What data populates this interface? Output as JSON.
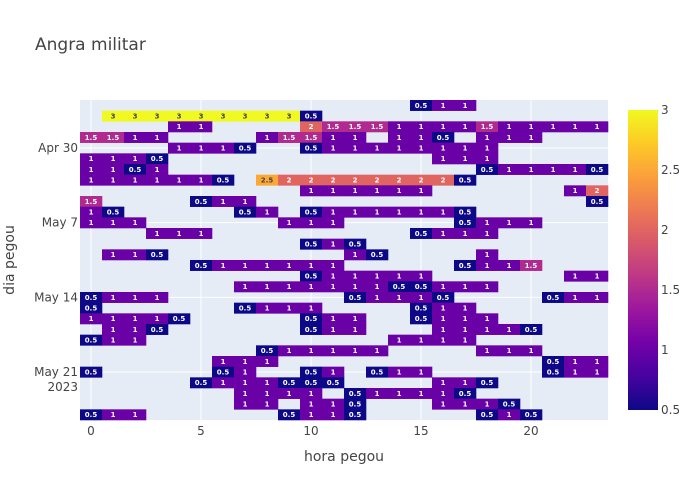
{
  "chart_data": {
    "type": "heatmap",
    "title": "Angra militar",
    "xlabel": "hora pegou",
    "ylabel": "dia pegou",
    "xlim": [
      -0.5,
      23.5
    ],
    "x_ticks": [
      0,
      5,
      10,
      15,
      20
    ],
    "x_tick_labels": [
      "0",
      "5",
      "10",
      "15",
      "20"
    ],
    "y_dates": [
      "2023-04-26",
      "2023-04-27",
      "2023-04-28",
      "2023-04-29",
      "2023-04-30",
      "2023-05-01",
      "2023-05-02",
      "2023-05-03",
      "2023-05-04",
      "2023-05-05",
      "2023-05-06",
      "2023-05-07",
      "2023-05-08",
      "2023-05-09",
      "2023-05-10",
      "2023-05-11",
      "2023-05-12",
      "2023-05-13",
      "2023-05-14",
      "2023-05-15",
      "2023-05-16",
      "2023-05-17",
      "2023-05-18",
      "2023-05-19",
      "2023-05-20",
      "2023-05-21",
      "2023-05-22",
      "2023-05-23",
      "2023-05-24",
      "2023-05-25"
    ],
    "y_ticks": [
      {
        "date": "2023-04-30",
        "label": "Apr 30"
      },
      {
        "date": "2023-05-07",
        "label": "May 7"
      },
      {
        "date": "2023-05-14",
        "label": "May 14"
      },
      {
        "date": "2023-05-21",
        "label": "May 21"
      }
    ],
    "y_year_label": "2023",
    "colorbar": {
      "min": 0.5,
      "max": 3,
      "ticks": [
        0.5,
        1,
        1.5,
        2,
        2.5,
        3
      ],
      "colorscale": [
        "#0d0887",
        "#46039f",
        "#7201a8",
        "#9c179e",
        "#bd3786",
        "#d8576b",
        "#ed7953",
        "#fb9f3a",
        "#fdca26",
        "#f0f921"
      ]
    },
    "grid": true,
    "z": [
      [
        null,
        null,
        null,
        null,
        null,
        null,
        null,
        null,
        null,
        null,
        null,
        null,
        null,
        null,
        null,
        0.5,
        1,
        1,
        null,
        null,
        null,
        null,
        null,
        null
      ],
      [
        null,
        3,
        3,
        3,
        3,
        3,
        3,
        3,
        3,
        3,
        0.5,
        null,
        null,
        null,
        null,
        null,
        null,
        null,
        null,
        null,
        null,
        null,
        null,
        null
      ],
      [
        null,
        null,
        null,
        null,
        1,
        1,
        null,
        null,
        null,
        null,
        2,
        1.5,
        1.5,
        1.5,
        1,
        1,
        1,
        1,
        1.5,
        1,
        1,
        1,
        1,
        1
      ],
      [
        1.5,
        1.5,
        1,
        1,
        null,
        null,
        null,
        null,
        1,
        1.5,
        1.5,
        1,
        1,
        null,
        1,
        1,
        0.5,
        null,
        1,
        1,
        1,
        null,
        null,
        null
      ],
      [
        null,
        null,
        null,
        null,
        1,
        1,
        1,
        0.5,
        null,
        null,
        0.5,
        1,
        1,
        1,
        1,
        1,
        1,
        1,
        1,
        null,
        null,
        null,
        null,
        null
      ],
      [
        1,
        1,
        1,
        0.5,
        null,
        null,
        null,
        null,
        null,
        null,
        null,
        null,
        null,
        null,
        null,
        null,
        1,
        1,
        1,
        null,
        null,
        null,
        null,
        null
      ],
      [
        1,
        1,
        0.5,
        1,
        null,
        null,
        null,
        null,
        null,
        null,
        null,
        null,
        null,
        null,
        null,
        null,
        null,
        null,
        0.5,
        1,
        1,
        1,
        1,
        0.5
      ],
      [
        1,
        1,
        1,
        1,
        1,
        1,
        0.5,
        null,
        2.5,
        2,
        2,
        2,
        2,
        2,
        2,
        2,
        2,
        0.5,
        null,
        null,
        null,
        null,
        null,
        null
      ],
      [
        null,
        null,
        null,
        null,
        null,
        null,
        null,
        null,
        null,
        null,
        1,
        1,
        1,
        1,
        1,
        1,
        null,
        null,
        null,
        null,
        null,
        null,
        1,
        2
      ],
      [
        1.5,
        null,
        null,
        null,
        null,
        0.5,
        1,
        1,
        null,
        null,
        null,
        null,
        null,
        null,
        null,
        null,
        null,
        null,
        null,
        null,
        null,
        null,
        null,
        0.5
      ],
      [
        1,
        0.5,
        null,
        null,
        null,
        null,
        null,
        0.5,
        1,
        null,
        0.5,
        1,
        1,
        1,
        1,
        1,
        1,
        0.5,
        null,
        null,
        null,
        null,
        null,
        null
      ],
      [
        1,
        1,
        1,
        null,
        null,
        null,
        null,
        null,
        null,
        1,
        1,
        1,
        null,
        null,
        null,
        null,
        null,
        0.5,
        1,
        1,
        1,
        null,
        null,
        null
      ],
      [
        null,
        null,
        null,
        1,
        1,
        1,
        null,
        null,
        null,
        null,
        null,
        null,
        null,
        null,
        null,
        0.5,
        1,
        1,
        1,
        null,
        null,
        null,
        null,
        null
      ],
      [
        null,
        null,
        null,
        null,
        null,
        null,
        null,
        null,
        null,
        null,
        0.5,
        1,
        0.5,
        null,
        null,
        null,
        null,
        null,
        null,
        null,
        null,
        null,
        null,
        null
      ],
      [
        null,
        1,
        1,
        0.5,
        null,
        null,
        null,
        null,
        null,
        null,
        null,
        null,
        1,
        0.5,
        null,
        null,
        null,
        null,
        1,
        null,
        null,
        null,
        null,
        null
      ],
      [
        null,
        null,
        null,
        null,
        null,
        0.5,
        1,
        1,
        1,
        1,
        1,
        1,
        null,
        null,
        null,
        null,
        null,
        0.5,
        1,
        1,
        1.5,
        null,
        null,
        null
      ],
      [
        null,
        null,
        null,
        null,
        null,
        null,
        null,
        null,
        null,
        null,
        0.5,
        1,
        1,
        1,
        1,
        1,
        null,
        null,
        null,
        null,
        null,
        null,
        1,
        1
      ],
      [
        null,
        null,
        null,
        null,
        null,
        null,
        null,
        1,
        1,
        1,
        1,
        1,
        1,
        1,
        0.5,
        0.5,
        1,
        1,
        1,
        null,
        null,
        null,
        null,
        null
      ],
      [
        0.5,
        1,
        1,
        1,
        null,
        null,
        null,
        null,
        null,
        null,
        null,
        null,
        0.5,
        1,
        1,
        1,
        0.5,
        null,
        null,
        null,
        null,
        0.5,
        1,
        1
      ],
      [
        0.5,
        null,
        null,
        null,
        null,
        null,
        null,
        0.5,
        1,
        1,
        1,
        null,
        null,
        null,
        null,
        0.5,
        1,
        1,
        null,
        null,
        null,
        null,
        null,
        null
      ],
      [
        1,
        1,
        1,
        1,
        0.5,
        null,
        null,
        null,
        null,
        null,
        0.5,
        1,
        1,
        null,
        null,
        0.5,
        1,
        1,
        1,
        null,
        null,
        null,
        null,
        null
      ],
      [
        null,
        1,
        1,
        0.5,
        null,
        null,
        null,
        null,
        null,
        null,
        0.5,
        1,
        1,
        null,
        null,
        null,
        1,
        1,
        1,
        1,
        0.5,
        null,
        null,
        null
      ],
      [
        0.5,
        1,
        1,
        null,
        null,
        null,
        null,
        null,
        null,
        null,
        null,
        null,
        null,
        null,
        1,
        1,
        1,
        1,
        null,
        null,
        null,
        null,
        null,
        null
      ],
      [
        null,
        null,
        null,
        null,
        null,
        null,
        null,
        null,
        0.5,
        1,
        1,
        1,
        1,
        1,
        null,
        null,
        null,
        null,
        1,
        1,
        1,
        null,
        null,
        null
      ],
      [
        null,
        null,
        null,
        null,
        null,
        null,
        1,
        1,
        1,
        null,
        null,
        null,
        null,
        null,
        null,
        null,
        null,
        null,
        null,
        null,
        null,
        0.5,
        1,
        1
      ],
      [
        0.5,
        null,
        null,
        null,
        null,
        null,
        0.5,
        1,
        null,
        null,
        0.5,
        1,
        null,
        0.5,
        1,
        1,
        null,
        null,
        null,
        null,
        null,
        0.5,
        1,
        1
      ],
      [
        null,
        null,
        null,
        null,
        null,
        0.5,
        1,
        1,
        1,
        0.5,
        0.5,
        0.5,
        null,
        null,
        null,
        null,
        1,
        1,
        0.5,
        null,
        null,
        null,
        null,
        null
      ],
      [
        null,
        null,
        null,
        null,
        null,
        null,
        null,
        1,
        1,
        1,
        1,
        null,
        0.5,
        1,
        1,
        1,
        1,
        0.5,
        null,
        null,
        null,
        null,
        null,
        null
      ],
      [
        null,
        null,
        null,
        null,
        null,
        null,
        null,
        1,
        1,
        null,
        1,
        1,
        0.5,
        null,
        null,
        null,
        1,
        1,
        1,
        0.5,
        null,
        null,
        null,
        null
      ],
      [
        0.5,
        1,
        1,
        null,
        null,
        null,
        null,
        null,
        null,
        0.5,
        1,
        1,
        0.5,
        null,
        null,
        null,
        null,
        null,
        0.5,
        1,
        0.5,
        null,
        null,
        null
      ]
    ]
  }
}
